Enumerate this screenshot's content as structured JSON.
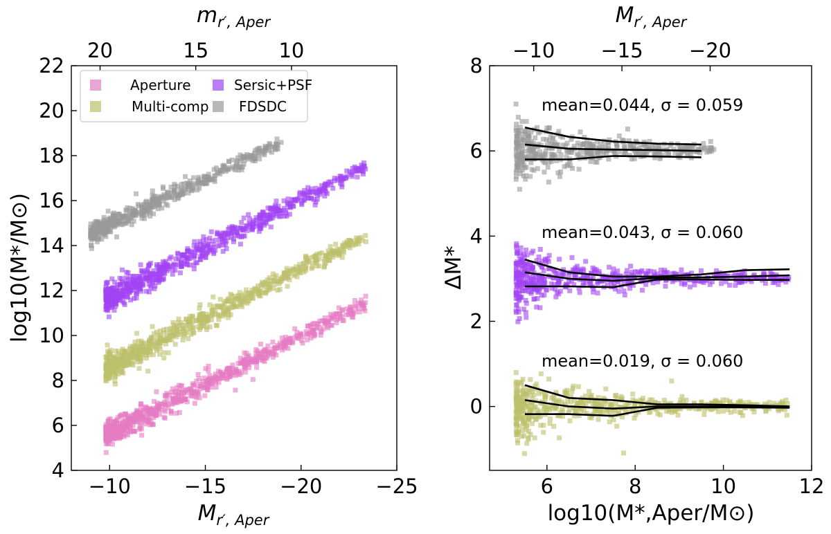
{
  "figure": {
    "left_panel": {
      "xlabel": "M_{r′, Aper}",
      "xlabel_base": "M",
      "xlabel_sub": "r′, Aper",
      "ylabel": "log10(M*/M⊙)",
      "top_xlabel": "m_{r′, Aper}",
      "top_xlabel_base": "m",
      "top_xlabel_sub": "r′, Aper",
      "xlim": [
        -8,
        -25
      ],
      "ylim": [
        4,
        22
      ],
      "x_ticks": [
        -10,
        -15,
        -20,
        -25
      ],
      "x_tick_labels": [
        "−10",
        "−15",
        "−20",
        "−25"
      ],
      "y_ticks": [
        4,
        6,
        8,
        10,
        12,
        14,
        16,
        18,
        20,
        22
      ],
      "y_tick_labels": [
        "4",
        "6",
        "8",
        "10",
        "12",
        "14",
        "16",
        "18",
        "20",
        "22"
      ],
      "top_ticks": [
        20,
        15,
        10
      ],
      "top_tick_labels": [
        "20",
        "15",
        "10"
      ],
      "top_axis_offset": 29.5
    },
    "right_panel": {
      "xlabel": "log10(M*,Aper/M⊙)",
      "ylabel": "ΔM*",
      "top_xlabel": "M_{r′, Aper}",
      "top_xlabel_base": "M",
      "top_xlabel_sub": "r′, Aper",
      "xlim": [
        4.7,
        12
      ],
      "ylim": [
        -1.5,
        8
      ],
      "x_ticks": [
        6,
        8,
        10,
        12
      ],
      "x_tick_labels": [
        "6",
        "8",
        "10",
        "12"
      ],
      "y_ticks": [
        0,
        2,
        4,
        6,
        8
      ],
      "y_tick_labels": [
        "0",
        "2",
        "4",
        "6",
        "8"
      ],
      "top_ticks": [
        -10,
        -15,
        -20
      ],
      "top_tick_labels": [
        "−10",
        "−15",
        "−20"
      ],
      "top_axis_mass_to_mag": {
        "slope": -2.5,
        "intercept": 4.25
      },
      "annotations": [
        {
          "text": "mean=0.044, σ = 0.059",
          "x": 7.8,
          "y": 7.2
        },
        {
          "text": "mean=0.043, σ = 0.060",
          "x": 7.8,
          "y": 4.2
        },
        {
          "text": "mean=0.019, σ = 0.060",
          "x": 7.8,
          "y": 1.1
        }
      ]
    },
    "legend": {
      "location": "upper-left",
      "entries": [
        {
          "label": "Aperture",
          "color": "#e47cc3"
        },
        {
          "label": "Sersic+PSF",
          "color": "#a145f4"
        },
        {
          "label": "Multi-comp",
          "color": "#bcc06a"
        },
        {
          "label": "FDSDC",
          "color": "#9a9a9a"
        }
      ]
    }
  },
  "chart_data": [
    {
      "type": "scatter",
      "title": "",
      "xlabel": "M_{r′, Aper}",
      "ylabel": "log10(M*/M⊙)",
      "top_xlabel": "m_{r′, Aper}",
      "xlim": [
        -8,
        -25
      ],
      "ylim": [
        4,
        22
      ],
      "note": "Each series is a linear band of points (stellar mass vs absolute magnitude), vertically offset by 3 dex per method.",
      "series": [
        {
          "name": "Aperture",
          "color": "#e47cc3",
          "x_range": [
            -9.8,
            -23.4
          ],
          "line": {
            "x0": -10,
            "y0": 5.7,
            "x1": -23.3,
            "y1": 11.4
          },
          "scatter_dex": 0.3,
          "n_points": 700
        },
        {
          "name": "Multi-comp",
          "color": "#bcc06a",
          "x_range": [
            -9.8,
            -23.4
          ],
          "line": {
            "x0": -10,
            "y0": 8.6,
            "x1": -23.3,
            "y1": 14.4
          },
          "scatter_dex": 0.3,
          "n_points": 700
        },
        {
          "name": "Sersic+PSF",
          "color": "#a145f4",
          "x_range": [
            -9.8,
            -23.4
          ],
          "line": {
            "x0": -10,
            "y0": 11.7,
            "x1": -23.3,
            "y1": 17.5
          },
          "scatter_dex": 0.3,
          "n_points": 700
        },
        {
          "name": "FDSDC",
          "color": "#9a9a9a",
          "x_range": [
            -9.0,
            -19.0
          ],
          "line": {
            "x0": -9.0,
            "y0": 14.5,
            "x1": -19.0,
            "y1": 18.6
          },
          "scatter_dex": 0.25,
          "n_points": 500
        }
      ]
    },
    {
      "type": "scatter",
      "title": "",
      "xlabel": "log10(M*,Aper/M⊙)",
      "ylabel": "ΔM*",
      "top_xlabel": "M_{r′, Aper}",
      "xlim": [
        4.7,
        12
      ],
      "ylim": [
        -1.5,
        8
      ],
      "series": [
        {
          "name": "FDSDC",
          "color": "#9a9a9a",
          "offset": 6,
          "mean": 0.044,
          "sigma": 0.059,
          "x_range": [
            5.3,
            9.8
          ],
          "n_points": 450,
          "median_line": {
            "x": [
              5.5,
              6.5,
              7.5,
              8.5,
              9.5
            ],
            "y": [
              6.15,
              6.05,
              6.03,
              6.02,
              6.0
            ]
          },
          "upper_line": {
            "x": [
              5.5,
              6.5,
              7.5,
              8.5,
              9.5
            ],
            "y": [
              6.55,
              6.33,
              6.22,
              6.17,
              6.15
            ]
          },
          "lower_line": {
            "x": [
              5.5,
              6.5,
              7.5,
              8.5,
              9.5
            ],
            "y": [
              5.8,
              5.8,
              5.88,
              5.87,
              5.85
            ]
          }
        },
        {
          "name": "Sersic+PSF",
          "color": "#a145f4",
          "offset": 3,
          "mean": 0.043,
          "sigma": 0.06,
          "x_range": [
            5.3,
            11.5
          ],
          "n_points": 550,
          "median_line": {
            "x": [
              5.5,
              6.5,
              7.5,
              8.5,
              9.5,
              10.5,
              11.5
            ],
            "y": [
              3.15,
              3.0,
              2.95,
              3.02,
              3.03,
              3.05,
              3.08
            ]
          },
          "upper_line": {
            "x": [
              5.5,
              6.5,
              7.5,
              8.5,
              9.5,
              10.5,
              11.5
            ],
            "y": [
              3.45,
              3.15,
              3.05,
              3.05,
              3.1,
              3.2,
              3.22
            ]
          },
          "lower_line": {
            "x": [
              5.5,
              6.5,
              7.5,
              8.5,
              9.5,
              10.5,
              11.5
            ],
            "y": [
              2.82,
              2.82,
              2.8,
              2.98,
              2.98,
              2.97,
              2.97
            ]
          }
        },
        {
          "name": "Multi-comp",
          "color": "#bcc06a",
          "offset": 0,
          "mean": 0.019,
          "sigma": 0.06,
          "x_range": [
            5.3,
            11.5
          ],
          "n_points": 550,
          "median_line": {
            "x": [
              5.5,
              6.5,
              7.5,
              8.5,
              9.5,
              10.5,
              11.5
            ],
            "y": [
              0.15,
              0.0,
              -0.05,
              0.0,
              0.0,
              0.0,
              -0.02
            ]
          },
          "upper_line": {
            "x": [
              5.5,
              6.5,
              7.5,
              8.5,
              9.5,
              10.5,
              11.5
            ],
            "y": [
              0.5,
              0.2,
              0.15,
              0.05,
              0.05,
              0.03,
              0.0
            ]
          },
          "lower_line": {
            "x": [
              5.5,
              6.5,
              7.5,
              8.5,
              9.5,
              10.5,
              11.5
            ],
            "y": [
              -0.18,
              -0.18,
              -0.22,
              -0.03,
              -0.02,
              -0.02,
              -0.03
            ]
          }
        }
      ],
      "annotations": [
        "mean=0.044, σ = 0.059",
        "mean=0.043, σ = 0.060",
        "mean=0.019, σ = 0.060"
      ]
    }
  ]
}
